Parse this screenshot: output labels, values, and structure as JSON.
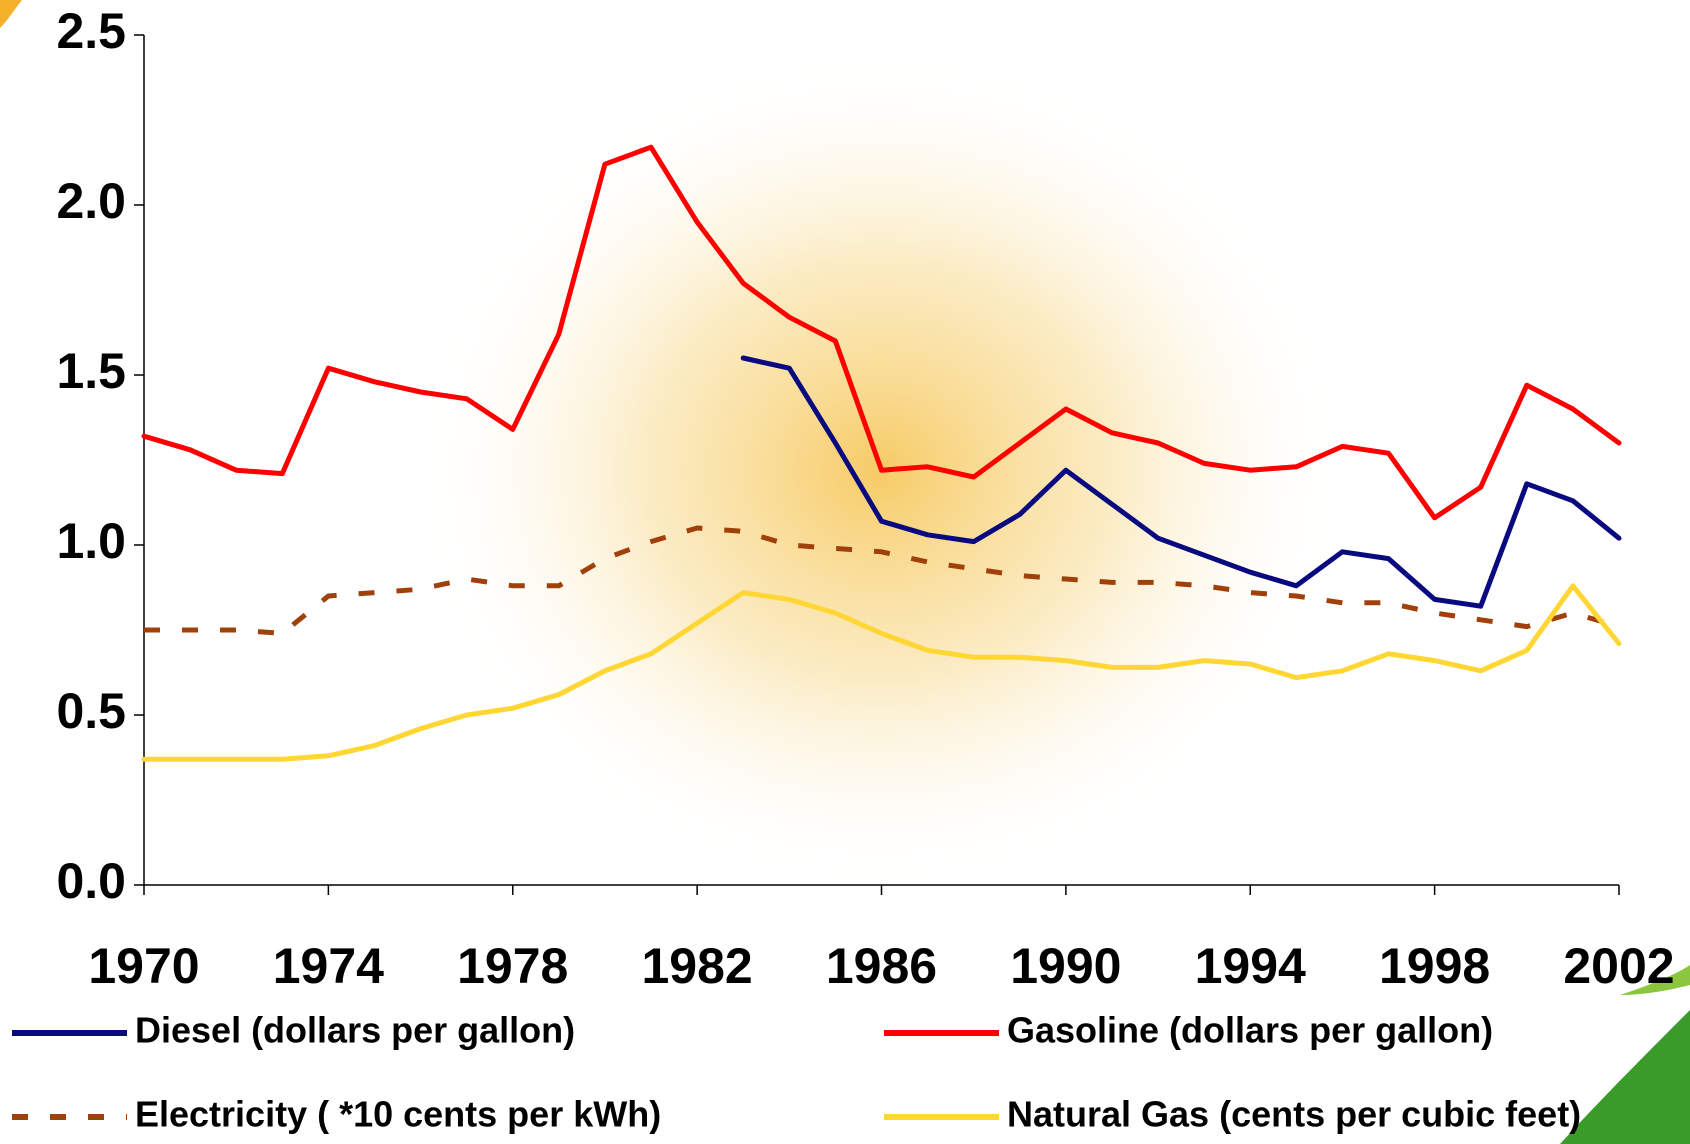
{
  "chart_data": {
    "type": "line",
    "x": [
      1970,
      1971,
      1972,
      1973,
      1974,
      1975,
      1976,
      1977,
      1978,
      1979,
      1980,
      1981,
      1982,
      1983,
      1984,
      1985,
      1986,
      1987,
      1988,
      1989,
      1990,
      1991,
      1992,
      1993,
      1994,
      1995,
      1996,
      1997,
      1998,
      1999,
      2000,
      2001,
      2002
    ],
    "series": [
      {
        "name": "Diesel (dollars per gallon)",
        "color": "#0a0a80",
        "linestyle": "solid",
        "values": [
          null,
          null,
          null,
          null,
          null,
          null,
          null,
          null,
          null,
          null,
          null,
          null,
          null,
          1.55,
          1.52,
          1.3,
          1.07,
          1.03,
          1.01,
          1.09,
          1.22,
          1.12,
          1.02,
          0.97,
          0.92,
          0.88,
          0.98,
          0.96,
          0.84,
          0.82,
          1.18,
          1.13,
          1.02
        ]
      },
      {
        "name": "Gasoline (dollars per gallon)",
        "color": "#ff0000",
        "linestyle": "solid",
        "values": [
          1.32,
          1.28,
          1.22,
          1.21,
          1.52,
          1.48,
          1.45,
          1.43,
          1.34,
          1.62,
          2.12,
          2.17,
          1.95,
          1.77,
          1.67,
          1.6,
          1.22,
          1.23,
          1.2,
          1.3,
          1.4,
          1.33,
          1.3,
          1.24,
          1.22,
          1.23,
          1.29,
          1.27,
          1.08,
          1.17,
          1.47,
          1.4,
          1.3
        ]
      },
      {
        "name": "Electricity ( *10 cents per kWh)",
        "color": "#a0400a",
        "linestyle": "dashed",
        "values": [
          0.75,
          0.75,
          0.75,
          0.74,
          0.85,
          0.86,
          0.87,
          0.9,
          0.88,
          0.88,
          0.96,
          1.01,
          1.05,
          1.04,
          1.0,
          0.99,
          0.98,
          0.95,
          0.93,
          0.91,
          0.9,
          0.89,
          0.89,
          0.88,
          0.86,
          0.85,
          0.83,
          0.83,
          0.8,
          0.78,
          0.76,
          0.8,
          0.76
        ]
      },
      {
        "name": "Natural Gas (cents per cubic feet)",
        "color": "#ffd633",
        "linestyle": "solid",
        "values": [
          0.37,
          0.37,
          0.37,
          0.37,
          0.38,
          0.41,
          0.46,
          0.5,
          0.52,
          0.56,
          0.63,
          0.68,
          0.77,
          0.86,
          0.84,
          0.8,
          0.74,
          0.69,
          0.67,
          0.67,
          0.66,
          0.64,
          0.64,
          0.66,
          0.65,
          0.61,
          0.63,
          0.68,
          0.66,
          0.63,
          0.69,
          0.88,
          0.71
        ]
      }
    ],
    "xlim": [
      1970,
      2002
    ],
    "xticks": [
      1970,
      1974,
      1978,
      1982,
      1986,
      1990,
      1994,
      1998,
      2002
    ],
    "ylim": [
      0,
      2.5
    ],
    "yticks": [
      {
        "value": 0,
        "label": "0.0"
      },
      0.5,
      {
        "value": 1,
        "label": "1.0"
      },
      1.5,
      {
        "value": 2,
        "label": "2.0"
      },
      2.5
    ]
  }
}
